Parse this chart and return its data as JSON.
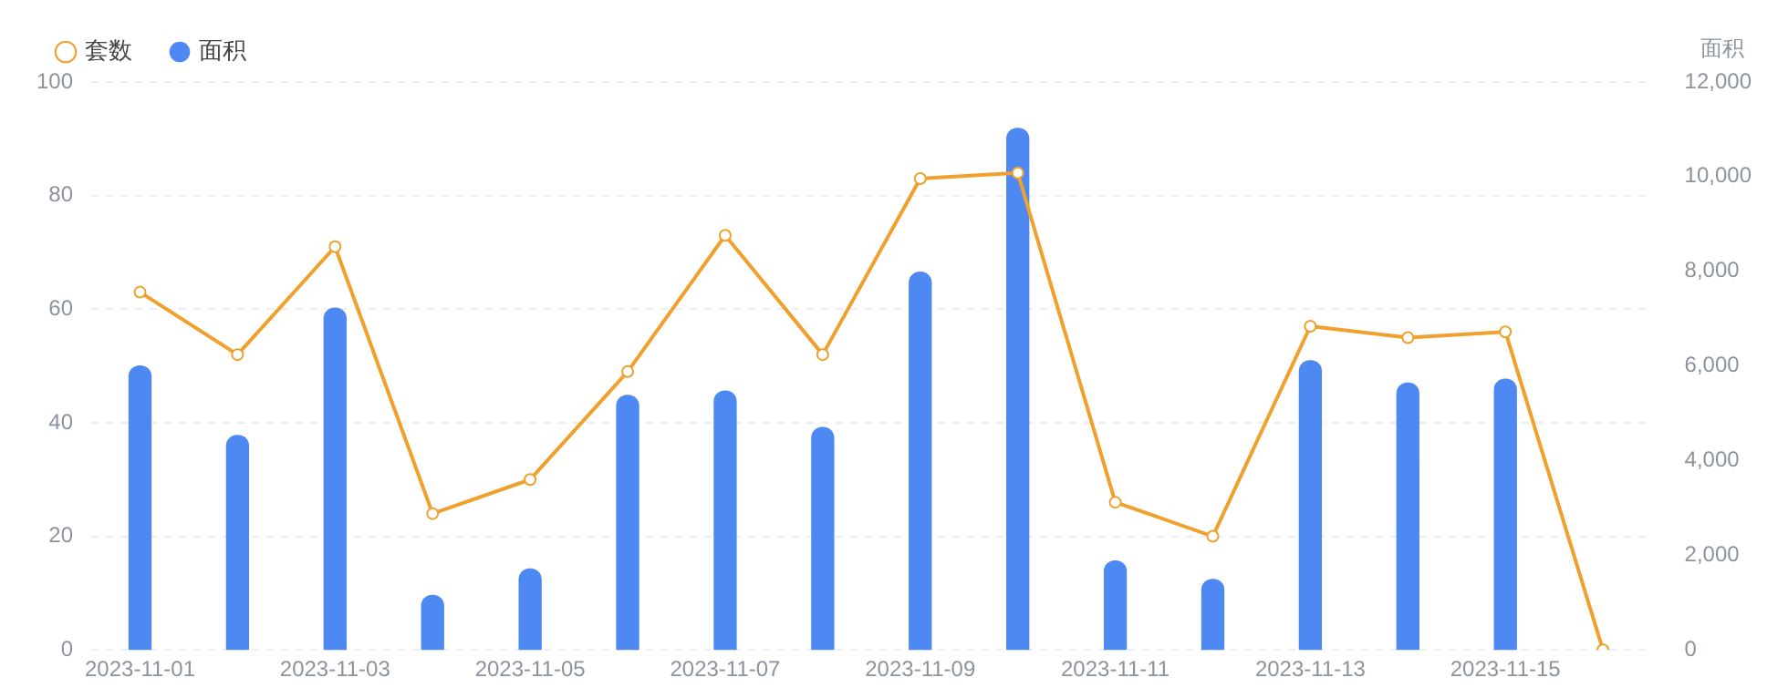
{
  "chart_data": {
    "type": "bar",
    "categories": [
      "2023-11-01",
      null,
      "2023-11-03",
      null,
      "2023-11-05",
      null,
      "2023-11-07",
      null,
      "2023-11-09",
      null,
      "2023-11-11",
      null,
      "2023-11-13",
      null,
      "2023-11-15",
      null
    ],
    "series": [
      {
        "name": "套数",
        "type": "line",
        "color": "#f0a02c",
        "marker": "circle",
        "values": [
          63,
          52,
          71,
          24,
          30,
          49,
          73,
          52,
          83,
          84,
          26,
          20,
          57,
          55,
          56,
          0
        ]
      },
      {
        "name": "面积",
        "axis": "y2",
        "color": "#4e88f3",
        "values": [
          6000,
          4530,
          7220,
          1150,
          1710,
          5380,
          5470,
          4700,
          7980,
          11020,
          1880,
          1490,
          6110,
          5640,
          5720,
          null
        ]
      }
    ],
    "ylim": [
      0,
      100
    ],
    "yticks": [
      0,
      20,
      40,
      60,
      80,
      100
    ],
    "y2label": "面积",
    "y2lim": [
      0,
      12000
    ],
    "y2ticks": [
      {
        "value": 0,
        "label": "0"
      },
      {
        "value": 2000,
        "label": "2,000"
      },
      {
        "value": 4000,
        "label": "4,000"
      },
      {
        "value": 6000,
        "label": "6,000"
      },
      {
        "value": 8000,
        "label": "8,000"
      },
      {
        "value": 10000,
        "label": "10,000"
      },
      {
        "value": 12000,
        "label": "12,000"
      }
    ],
    "grid": "y",
    "legend": "top left"
  }
}
